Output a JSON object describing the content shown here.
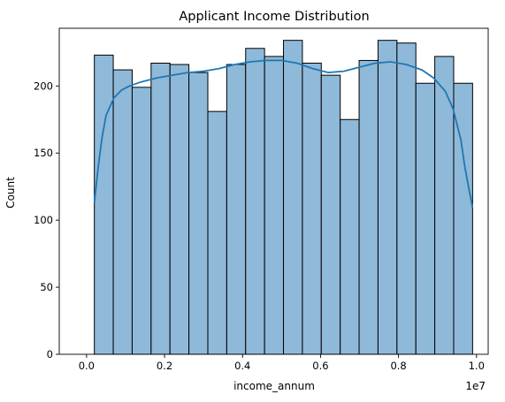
{
  "chart_data": {
    "type": "bar",
    "subtype": "histogram-with-kde",
    "title": "Applicant Income Distribution",
    "xlabel": "income_annum",
    "ylabel": "Count",
    "x_scale_label": "1e7",
    "xlim": [
      -0.07,
      1.03
    ],
    "ylim": [
      0,
      243
    ],
    "x_ticks": [
      0.0,
      0.2,
      0.4,
      0.6,
      0.8,
      1.0
    ],
    "x_tick_labels": [
      "0.0",
      "0.2",
      "0.4",
      "0.6",
      "0.8",
      "1.0"
    ],
    "y_ticks": [
      0,
      50,
      100,
      150,
      200
    ],
    "y_tick_labels": [
      "0",
      "50",
      "100",
      "150",
      "200"
    ],
    "bin_range": [
      0.02,
      0.99
    ],
    "bins": 20,
    "values": [
      223,
      212,
      199,
      217,
      216,
      210,
      181,
      216,
      228,
      222,
      234,
      217,
      208,
      175,
      219,
      234,
      232,
      202,
      222,
      202
    ],
    "kde": {
      "x": [
        0.02,
        0.03,
        0.04,
        0.05,
        0.07,
        0.09,
        0.11,
        0.14,
        0.18,
        0.22,
        0.26,
        0.3,
        0.34,
        0.38,
        0.42,
        0.46,
        0.5,
        0.54,
        0.58,
        0.62,
        0.66,
        0.7,
        0.74,
        0.78,
        0.82,
        0.86,
        0.89,
        0.92,
        0.94,
        0.96,
        0.97,
        0.98,
        0.99
      ],
      "y": [
        113,
        140,
        162,
        178,
        191,
        197,
        200,
        203,
        206,
        208,
        210,
        211,
        213,
        216,
        218,
        219,
        219,
        217,
        213,
        210,
        211,
        214,
        217,
        218,
        216,
        212,
        206,
        196,
        183,
        160,
        140,
        124,
        109
      ]
    },
    "grid": false,
    "colors": {
      "bar_fill": "#8fb9d9",
      "bar_edge": "#000000",
      "kde_line": "#1f77b4"
    }
  }
}
